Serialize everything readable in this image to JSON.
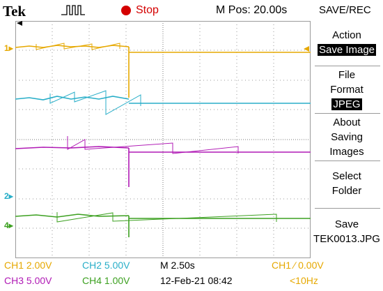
{
  "header": {
    "brand": "Tek",
    "status": "Stop",
    "mpos": "M Pos: 20.00s",
    "menu_title": "SAVE/REC"
  },
  "menu": {
    "action_label": "Action",
    "action_value": "Save Image",
    "file_format_line1": "File",
    "file_format_line2": "Format",
    "file_format_value": "JPEG",
    "about_line1": "About",
    "about_line2": "Saving",
    "about_line3": "Images",
    "select_line1": "Select",
    "select_line2": "Folder",
    "save_line1": "Save",
    "save_line2": "TEK0013.JPG"
  },
  "markers": {
    "ch1": "1",
    "ch2": "2",
    "ch4": "4"
  },
  "readouts": {
    "ch1": "CH1  2.00V",
    "ch2": "CH2  5.00V",
    "ch3": "CH3  5.00V",
    "ch4": "CH4  1.00V",
    "timebase": "M 2.50s",
    "date": "12-Feb-21 08:42",
    "trigger": "CH1 ∕ 0.00V",
    "freq": "<10Hz"
  },
  "colors": {
    "ch1": "#e6a800",
    "ch2": "#28aec8",
    "ch3": "#b01ab5",
    "ch4": "#3ca020",
    "stop": "#d40000"
  }
}
